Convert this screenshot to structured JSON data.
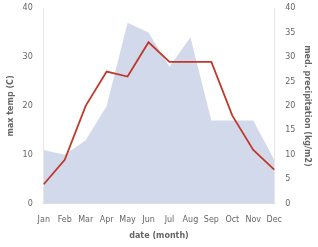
{
  "chart_data": {
    "type": "line",
    "xlabel": "date (month)",
    "ylabel": "max temp (C)",
    "y2label": "med. precipitation (kg/m2)",
    "categories": [
      "Jan",
      "Feb",
      "Mar",
      "Apr",
      "May",
      "Jun",
      "Jul",
      "Aug",
      "Sep",
      "Oct",
      "Nov",
      "Dec"
    ],
    "series": [
      {
        "type": "area",
        "axis": "y2",
        "color": "#b8c4e0",
        "values": [
          11,
          10,
          13,
          20,
          37,
          35,
          28,
          34,
          17,
          17,
          17,
          9
        ]
      },
      {
        "type": "line",
        "color": "#c0392b",
        "values": [
          4,
          9,
          20,
          27,
          26,
          33,
          29,
          29,
          29,
          18,
          11,
          7
        ]
      }
    ],
    "ylim": [
      0,
      40
    ],
    "yticks": [
      0,
      10,
      20,
      30,
      40
    ],
    "y2lim": [
      0,
      40
    ],
    "y2ticks": [
      0,
      5,
      10,
      15,
      20,
      25,
      30,
      35,
      40
    ],
    "grid": false
  }
}
